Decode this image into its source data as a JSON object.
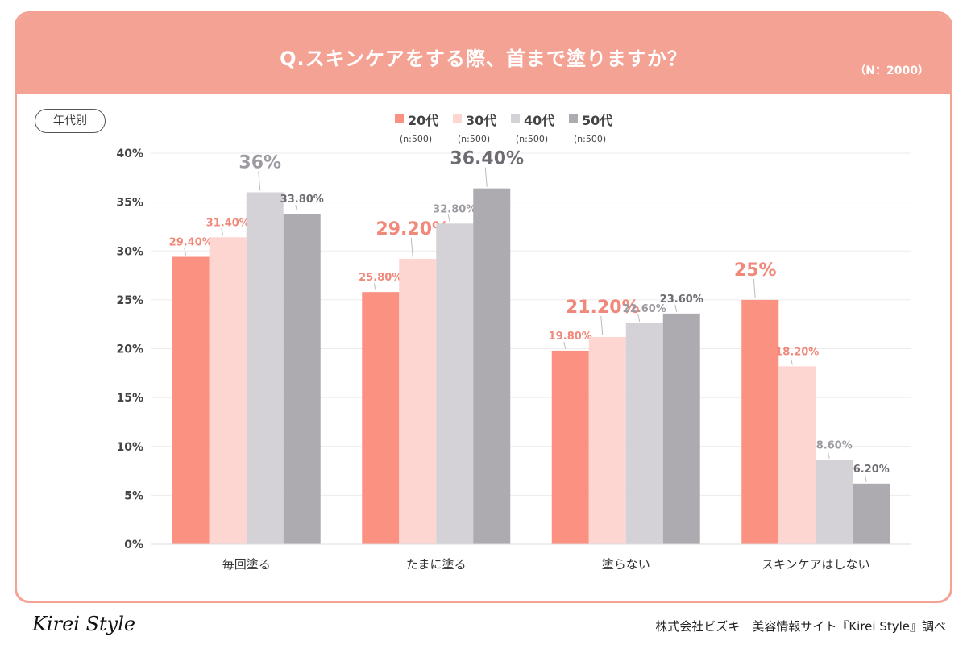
{
  "header": {
    "title": "Q.スキンケアをする際、首まで塗りますか？",
    "n_label": "（N：2000）"
  },
  "group_label": "年代別",
  "chart_data": {
    "type": "bar",
    "categories": [
      "毎回塗る",
      "たまに塗る",
      "塗らない",
      "スキンケアはしない"
    ],
    "series": [
      {
        "name": "20代",
        "sub": "(n:500)",
        "color": "#fb9180",
        "label_color": "#f0897b",
        "values": [
          29.4,
          25.8,
          19.8,
          25
        ],
        "labels": [
          "29.40%",
          "25.80%",
          "19.80%",
          "25%"
        ]
      },
      {
        "name": "30代",
        "sub": "(n:500)",
        "color": "#fdd6d2",
        "label_color": "#f0897b",
        "values": [
          31.4,
          29.2,
          21.2,
          18.2
        ],
        "labels": [
          "31.40%",
          "29.20%",
          "21.20%",
          "18.20%"
        ]
      },
      {
        "name": "40代",
        "sub": "(n:500)",
        "color": "#d4d2d6",
        "label_color": "#9e9aa1",
        "values": [
          36,
          32.8,
          22.6,
          8.6
        ],
        "labels": [
          "36%",
          "32.80%",
          "22.60%",
          "8.60%"
        ]
      },
      {
        "name": "50代",
        "sub": "(n:500)",
        "color": "#aeabb0",
        "label_color": "#6f6b72",
        "values": [
          33.8,
          36.4,
          23.6,
          6.2
        ],
        "labels": [
          "33.80%",
          "36.40%",
          "23.60%",
          "6.20%"
        ]
      }
    ],
    "highlight": [
      [
        0,
        2,
        2
      ],
      [
        1,
        1,
        3
      ],
      [
        2,
        1,
        1
      ],
      [
        3,
        0,
        0
      ]
    ],
    "y_ticks": [
      "0%",
      "5%",
      "10%",
      "15%",
      "20%",
      "25%",
      "30%",
      "35%",
      "40%"
    ],
    "ylim": [
      0,
      40
    ],
    "grid": true,
    "legend_position": "top-center"
  },
  "footer": {
    "logo": "Kirei Style",
    "credit": "株式会社ビズキ　美容情報サイト『Kirei Style』調べ"
  }
}
